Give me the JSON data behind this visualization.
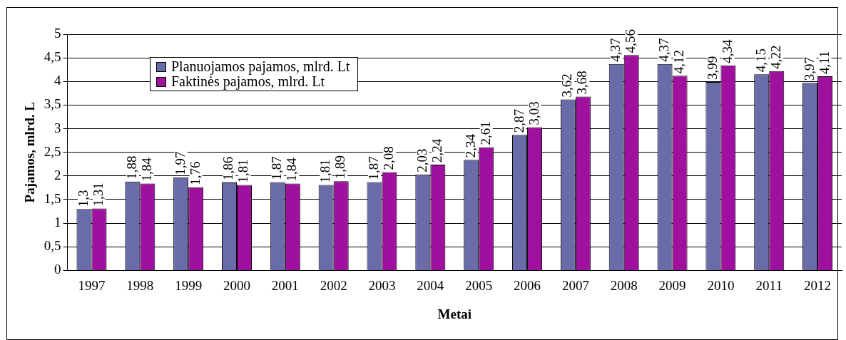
{
  "chart_data": {
    "type": "bar",
    "xlabel": "Metai",
    "ylabel": "Pajamos, mlrd. L",
    "categories": [
      "1997",
      "1998",
      "1999",
      "2000",
      "2001",
      "2002",
      "2003",
      "2004",
      "2005",
      "2006",
      "2007",
      "2008",
      "2009",
      "2010",
      "2011",
      "2012"
    ],
    "series": [
      {
        "name": "Planuojamos pajamos, mlrd. Lt",
        "color": "#6a6caa",
        "values": [
          1.3,
          1.88,
          1.97,
          1.86,
          1.87,
          1.81,
          1.87,
          2.03,
          2.34,
          2.87,
          3.62,
          4.37,
          4.37,
          3.99,
          4.15,
          3.97
        ],
        "value_labels": [
          "1,3",
          "1,88",
          "1,97",
          "1,86",
          "1,87",
          "1,81",
          "1,87",
          "2,03",
          "2,34",
          "2,87",
          "3,62",
          "4,37",
          "4,37",
          "3,99",
          "4,15",
          "3,97"
        ]
      },
      {
        "name": "Faktinės pajamos, mlrd. Lt",
        "color": "#a0109e",
        "values": [
          1.31,
          1.84,
          1.76,
          1.81,
          1.84,
          1.89,
          2.08,
          2.24,
          2.61,
          3.03,
          3.68,
          4.56,
          4.12,
          4.34,
          4.22,
          4.11
        ],
        "value_labels": [
          "1,31",
          "1,84",
          "1,76",
          "1,81",
          "1,84",
          "1,89",
          "2,08",
          "2,24",
          "2,61",
          "3,03",
          "3,68",
          "4,56",
          "4,12",
          "4,34",
          "4,22",
          "4,11"
        ]
      }
    ],
    "ylim": [
      0,
      5
    ],
    "yticks": [
      0,
      {
        "value": 0.5,
        "label": "0,5"
      },
      1,
      {
        "value": 1.5,
        "label": "1,5"
      },
      2,
      {
        "value": 2.5,
        "label": "2,5"
      },
      3,
      {
        "value": 3.5,
        "label": "3,5"
      },
      4,
      {
        "value": 4.5,
        "label": "4,5"
      },
      5
    ],
    "grid": "y",
    "legend": "top left"
  }
}
